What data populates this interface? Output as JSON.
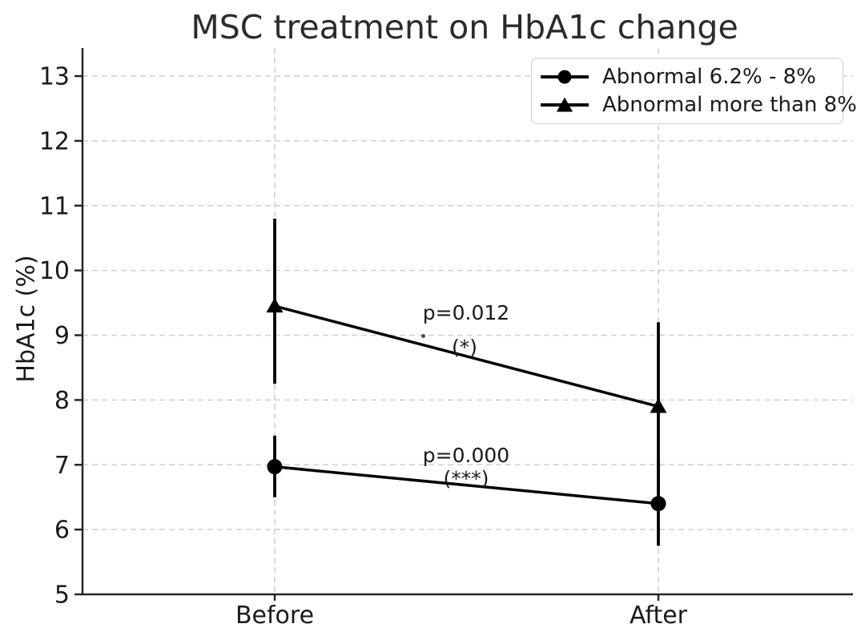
{
  "chart_data": {
    "type": "line",
    "title": "MSC treatment on HbA1c change",
    "ylabel": "HbA1c (%)",
    "xlabel": "",
    "categories": [
      "Before",
      "After"
    ],
    "ylim": [
      5,
      13
    ],
    "yticks": [
      5,
      6,
      7,
      8,
      9,
      10,
      11,
      12,
      13
    ],
    "grid": {
      "style": "dashed",
      "horizontal": true,
      "vertical_at_categories": true
    },
    "legend_position": "upper-right",
    "series": [
      {
        "name": "Abnormal 6.2% - 8%",
        "marker": "circle",
        "values": [
          6.97,
          6.4
        ],
        "err_low": [
          6.5,
          5.75
        ],
        "err_high": [
          7.45,
          7.05
        ]
      },
      {
        "name": "Abnormal more than 8%",
        "marker": "triangle",
        "values": [
          9.45,
          7.9
        ],
        "err_low": [
          8.25,
          6.6
        ],
        "err_high": [
          10.8,
          9.2
        ]
      }
    ],
    "annotations": [
      {
        "text": "p=0.012",
        "significance": "(*)"
      },
      {
        "text": "p=0.000",
        "significance": "(***)"
      }
    ],
    "colors": {
      "series": "#000000",
      "grid": "#cfcfcf",
      "spine": "#262626",
      "text": "#1a1a1a",
      "background": "#ffffff"
    }
  }
}
